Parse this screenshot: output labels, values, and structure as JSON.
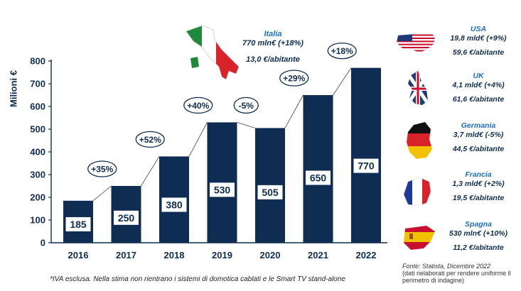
{
  "chart_data": {
    "type": "bar",
    "categories": [
      "2016",
      "2017",
      "2018",
      "2019",
      "2020",
      "2021",
      "2022"
    ],
    "values": [
      185,
      250,
      380,
      530,
      505,
      650,
      770
    ],
    "growth_labels": [
      "+35%",
      "+52%",
      "+40%",
      "-5%",
      "+29%",
      "+18%"
    ],
    "ylabel": "Milioni €",
    "ylim": [
      0,
      800
    ],
    "yticks": [
      0,
      100,
      200,
      300,
      400,
      500,
      600,
      700,
      800
    ],
    "grid": false,
    "bar_color": "#0f2d52"
  },
  "italia": {
    "name": "Italia",
    "revenue": "770 mln€ (+18%)",
    "per_capita": "13,0 €/abitante",
    "flag": "italy-map-flag"
  },
  "countries": [
    {
      "key": "usa",
      "name": "USA",
      "revenue": "19,8 mld€ (+9%)",
      "per_capita": "59,6 €/abitante",
      "flag": "usa-map-flag"
    },
    {
      "key": "uk",
      "name": "UK",
      "revenue": "4,1 mld€ (+4%)",
      "per_capita": "61,6 €/abitante",
      "flag": "uk-map-flag"
    },
    {
      "key": "germania",
      "name": "Germania",
      "revenue": "3,7 mld€ (-5%)",
      "per_capita": "44,5 €/abitante",
      "flag": "germany-map-flag"
    },
    {
      "key": "francia",
      "name": "Francia",
      "revenue": "1,3 mld€ (+2%)",
      "per_capita": "19,5 €/abitante",
      "flag": "france-map-flag"
    },
    {
      "key": "spagna",
      "name": "Spagna",
      "revenue": "530 mln€  (+10%)",
      "per_capita": "11,2 €/abitante",
      "flag": "spain-map-flag"
    }
  ],
  "footnote": "*IVA esclusa. Nella stima non rientrano i sistemi di domotica cablati e le Smart TV stand-alone",
  "source": {
    "line1": "Fonte: Statista, Dicembre 2022",
    "line2": "(dati rielaborati per rendere uniforme il perimetro di indagine)"
  },
  "colors": {
    "navy": "#0f2d52",
    "blue": "#1d6fc4"
  }
}
